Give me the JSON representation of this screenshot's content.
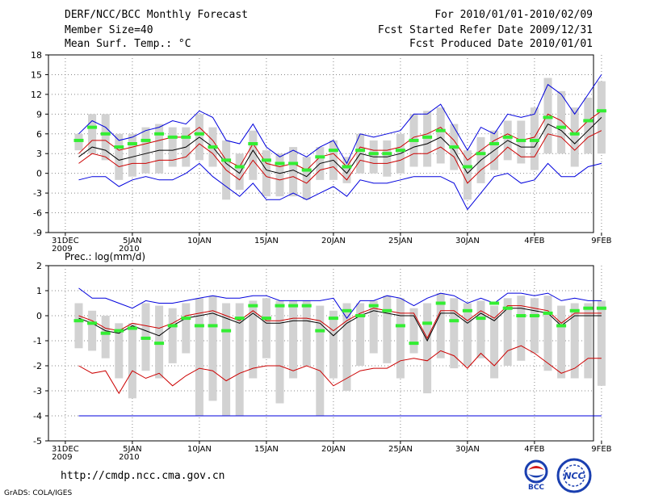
{
  "header": {
    "title": "DERF/NCC/BCC Monthly Forecast",
    "member": "Member Size=40",
    "variable": "Mean Surf. Temp.: °C",
    "period": "For 2010/01/01-2010/02/09",
    "started": "Fcst Started Refer Date 2009/12/31",
    "produced": "Fcst Produced Date 2010/01/01"
  },
  "footer": {
    "url": "http://cmdp.ncc.cma.gov.cn",
    "credit": "GrADS: COLA/IGES",
    "logo_left": "BCC",
    "logo_right": "NCC"
  },
  "colors": {
    "max": "#0000dd",
    "min": "#0000dd",
    "p_hi": "#cc0000",
    "p_lo": "#cc0000",
    "mean": "#000000",
    "box": "#d2d2d2",
    "median": "#33ee33"
  },
  "chart_data": [
    {
      "type": "line",
      "title": "Mean Surf. Temp.: °C",
      "x_ticks": [
        "31DEC\n2009",
        "5JAN\n2010",
        "10JAN",
        "15JAN",
        "20JAN",
        "25JAN",
        "30JAN",
        "4FEB",
        "9FEB"
      ],
      "ylim": [
        -9,
        18
      ],
      "yticks": [
        -9,
        -6,
        -3,
        0,
        3,
        6,
        9,
        12,
        15,
        18
      ],
      "days": 40,
      "series": {
        "max": [
          6,
          8,
          7,
          5,
          5.5,
          6.5,
          7,
          8,
          7.5,
          9.5,
          8.5,
          5,
          4.5,
          7.5,
          4,
          2.5,
          3.5,
          2.5,
          4,
          5,
          1.5,
          6,
          5.5,
          6,
          6.5,
          9,
          9,
          10.5,
          7,
          3.5,
          7,
          6,
          9,
          8.5,
          9,
          13.5,
          12,
          9,
          12,
          15
        ],
        "p_hi": [
          3,
          5,
          5,
          3.5,
          4,
          4.5,
          5,
          5.5,
          5.5,
          7,
          5,
          2,
          1,
          4.5,
          1.5,
          1,
          1.5,
          0.5,
          2.5,
          3,
          1,
          4,
          3.5,
          3.5,
          4,
          5.5,
          6,
          7,
          5,
          2,
          3.5,
          5,
          6,
          5,
          5.5,
          9,
          8,
          6,
          8,
          9.5
        ],
        "mean": [
          2.5,
          4,
          3.5,
          2,
          2.5,
          3,
          3.5,
          3.5,
          4,
          5.5,
          4,
          1.5,
          0,
          3.5,
          0.5,
          0,
          0.5,
          -0.5,
          1.5,
          2,
          0,
          3,
          2.5,
          2.5,
          3,
          4,
          4.5,
          5.5,
          3.5,
          0,
          2,
          3.5,
          5,
          4,
          4,
          7.5,
          6.5,
          4.5,
          6.5,
          8.5
        ],
        "p_lo": [
          1.5,
          3,
          2.5,
          1,
          1.5,
          1.5,
          2,
          2,
          2.5,
          4.5,
          3,
          0.5,
          -1,
          2,
          -0.5,
          -1,
          -0.5,
          -1.5,
          0.5,
          1,
          -1,
          2,
          1.5,
          1.5,
          2,
          3,
          3,
          4,
          2.5,
          -1.5,
          0.5,
          2,
          4,
          2.5,
          2.5,
          6,
          5.5,
          3.5,
          5.5,
          6.5
        ],
        "min": [
          -1,
          -0.5,
          -0.5,
          -2,
          -1,
          -0.5,
          -1,
          -1,
          0,
          1.5,
          -0.5,
          -2,
          -3.5,
          -1.5,
          -4,
          -4,
          -3,
          -4,
          -3,
          -2,
          -3.5,
          -1,
          -1.5,
          -1.5,
          -1,
          -0.5,
          -0.5,
          -0.5,
          -1.5,
          -5.5,
          -3,
          -0.5,
          0,
          -1.5,
          -1,
          1.5,
          -0.5,
          -0.5,
          1,
          1.5
        ],
        "box_top": [
          6,
          9,
          9,
          6,
          6,
          7,
          7.5,
          7,
          7,
          9,
          7,
          5,
          3,
          6.5,
          3.5,
          3,
          4,
          2.5,
          4,
          5,
          2.5,
          6,
          5,
          5,
          6,
          9,
          9.5,
          10,
          7.5,
          3.5,
          5.5,
          6.5,
          8,
          8,
          10,
          14.5,
          12.5,
          10,
          11.5,
          14
        ],
        "box_bot": [
          3.5,
          3,
          2,
          -1,
          -0.5,
          0,
          0,
          1,
          1,
          2,
          1,
          -4,
          -2.5,
          -1,
          -3.5,
          -3.5,
          -3.5,
          -4,
          -1,
          -1,
          -1.5,
          0,
          0,
          -0.5,
          0,
          1,
          1,
          1.5,
          0.5,
          -4,
          -1.5,
          0.5,
          2,
          1.5,
          0.5,
          3,
          3,
          1,
          3,
          3
        ],
        "median": [
          5,
          7,
          6,
          4,
          4.5,
          5,
          6,
          5.5,
          5.5,
          6,
          4,
          2,
          1,
          4.5,
          2,
          1.5,
          1.5,
          0.5,
          2.5,
          3.5,
          1,
          3.5,
          3,
          3,
          3.5,
          5,
          5.5,
          6.5,
          4,
          1,
          3,
          4.5,
          5.5,
          5,
          5,
          8.5,
          7,
          6,
          8,
          9.5
        ]
      }
    },
    {
      "type": "line",
      "title": "Prec.: log(mm/d)",
      "x_ticks": [
        "31DEC\n2009",
        "5JAN\n2010",
        "10JAN",
        "15JAN",
        "20JAN",
        "25JAN",
        "30JAN",
        "4FEB",
        "9FEB"
      ],
      "ylim": [
        -5,
        2
      ],
      "yticks": [
        -5,
        -4,
        -3,
        -2,
        -1,
        0,
        1,
        2
      ],
      "days": 40,
      "series": {
        "max": [
          1.1,
          0.7,
          0.7,
          0.5,
          0.3,
          0.6,
          0.5,
          0.5,
          0.6,
          0.7,
          0.8,
          0.7,
          0.7,
          0.8,
          0.8,
          0.6,
          0.6,
          0.6,
          0.6,
          0.7,
          -0.1,
          0.6,
          0.6,
          0.8,
          0.7,
          0.4,
          0.7,
          0.9,
          0.8,
          0.5,
          0.7,
          0.5,
          0.9,
          0.9,
          0.8,
          0.9,
          0.6,
          0.7,
          0.6,
          0.6
        ],
        "p_hi": [
          0,
          -0.2,
          -0.5,
          -0.6,
          -0.3,
          -0.4,
          -0.5,
          -0.3,
          0,
          0.1,
          0.2,
          0,
          -0.2,
          0.2,
          -0.2,
          -0.2,
          -0.1,
          -0.1,
          -0.2,
          -0.6,
          -0.2,
          0.1,
          0.3,
          0.2,
          0.1,
          0.1,
          -0.9,
          0.2,
          0.2,
          -0.2,
          0.2,
          -0.1,
          0.4,
          0.4,
          0.3,
          0.2,
          -0.3,
          0.1,
          0.1,
          0.1
        ],
        "mean": [
          -0.1,
          -0.3,
          -0.6,
          -0.7,
          -0.4,
          -0.6,
          -0.8,
          -0.4,
          -0.1,
          0,
          0.1,
          -0.1,
          -0.3,
          0.1,
          -0.3,
          -0.3,
          -0.2,
          -0.2,
          -0.3,
          -0.8,
          -0.3,
          0,
          0.2,
          0.1,
          0,
          0,
          -1.0,
          0.1,
          0.1,
          -0.3,
          0.1,
          -0.2,
          0.3,
          0.3,
          0.2,
          0.1,
          -0.4,
          0,
          0,
          0
        ],
        "p_lo": [
          -2,
          -2.3,
          -2.2,
          -3.1,
          -2.2,
          -2.5,
          -2.3,
          -2.8,
          -2.4,
          -2.1,
          -2.2,
          -2.6,
          -2.3,
          -2.1,
          -2.0,
          -2.0,
          -2.2,
          -2.0,
          -2.2,
          -2.8,
          -2.5,
          -2.2,
          -2.1,
          -2.1,
          -1.8,
          -1.7,
          -1.8,
          -1.4,
          -1.6,
          -2.1,
          -1.5,
          -2.0,
          -1.4,
          -1.2,
          -1.5,
          -1.9,
          -2.3,
          -2.1,
          -1.7,
          -1.7
        ],
        "min": [
          -4,
          -4,
          -4,
          -4,
          -4,
          -4,
          -4,
          -4,
          -4,
          -4,
          -4,
          -4,
          -4,
          -4,
          -4,
          -4,
          -4,
          -4,
          -4,
          -4,
          -4,
          -4,
          -4,
          -4,
          -4,
          -4,
          -4,
          -4,
          -4,
          -4,
          -4,
          -4,
          -4,
          -4,
          -4,
          -4,
          -4,
          -4,
          -4,
          -4
        ],
        "box_top": [
          0.5,
          0.2,
          0,
          -0.3,
          -0.3,
          0.5,
          0.4,
          0.3,
          0.5,
          0.7,
          0.8,
          0.5,
          0.5,
          0.6,
          0.7,
          0.6,
          0.6,
          0.6,
          0.4,
          0.2,
          0.5,
          0.5,
          0.6,
          0.8,
          0.7,
          0.3,
          0.5,
          0.9,
          0.7,
          0.5,
          0.6,
          0.4,
          0.7,
          0.8,
          0.7,
          0.8,
          0.4,
          0.5,
          0.5,
          0.6
        ],
        "box_bot": [
          -1.3,
          -1.4,
          -1.7,
          -2.5,
          -3.3,
          -2.2,
          -2.5,
          -1.9,
          -1.5,
          -4,
          -3.4,
          -4,
          -4,
          -2.5,
          -1.7,
          -3.5,
          -2.5,
          -2.0,
          -4,
          -2.5,
          -3.0,
          -2.0,
          -1.5,
          -1.9,
          -2.5,
          -1.5,
          -3.1,
          -1.7,
          -2.1,
          -2.0,
          -1.7,
          -2.5,
          -2.0,
          -1.8,
          -1.5,
          -2.2,
          -2.5,
          -2.5,
          -2.5,
          -2.8
        ],
        "median": [
          -0.2,
          -0.3,
          -0.7,
          -0.6,
          -0.5,
          -0.9,
          -1.1,
          -0.4,
          -0.1,
          -0.4,
          -0.4,
          -0.6,
          -0.1,
          0.4,
          -0.1,
          0.4,
          0.4,
          0.4,
          -0.6,
          -0.1,
          0.2,
          0,
          0.4,
          0.2,
          -0.4,
          -1.1,
          -0.3,
          0.5,
          -0.2,
          0.2,
          -0.1,
          0.5,
          0.3,
          0,
          0,
          0.1,
          -0.4,
          0.2,
          0.3,
          0.3
        ]
      }
    }
  ]
}
